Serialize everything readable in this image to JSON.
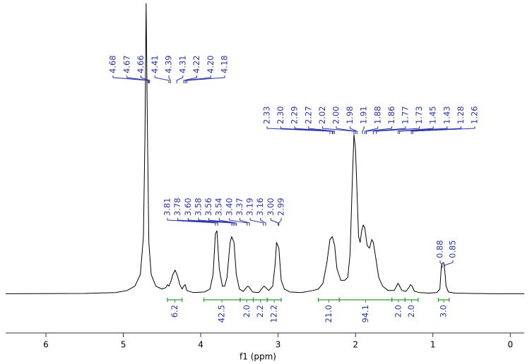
{
  "chart_data": {
    "type": "line",
    "x_label": "f1 (ppm)",
    "color": "#000000",
    "xlim": [
      6.52,
      -0.18
    ],
    "xticks": [
      6,
      5,
      4,
      3,
      2,
      1,
      0
    ],
    "ylim": [
      0,
      100
    ],
    "x": [
      6.52,
      5.5,
      5.1,
      4.95,
      4.85,
      4.78,
      4.74,
      4.72,
      4.705,
      4.69,
      4.67,
      4.64,
      4.58,
      4.5,
      4.45,
      4.43,
      4.41,
      4.38,
      4.36,
      4.33,
      4.3,
      4.27,
      4.24,
      4.22,
      4.2,
      4.18,
      4.1,
      3.95,
      3.88,
      3.84,
      3.81,
      3.79,
      3.76,
      3.72,
      3.69,
      3.66,
      3.62,
      3.6,
      3.57,
      3.54,
      3.5,
      3.45,
      3.41,
      3.39,
      3.37,
      3.33,
      3.25,
      3.2,
      3.18,
      3.16,
      3.12,
      3.07,
      3.04,
      3.02,
      2.99,
      2.96,
      2.92,
      2.85,
      2.7,
      2.55,
      2.48,
      2.42,
      2.37,
      2.33,
      2.3,
      2.27,
      2.24,
      2.19,
      2.14,
      2.1,
      2.07,
      2.04,
      2.02,
      2.0,
      1.98,
      1.96,
      1.94,
      1.92,
      1.9,
      1.88,
      1.85,
      1.82,
      1.79,
      1.77,
      1.74,
      1.7,
      1.65,
      1.58,
      1.5,
      1.47,
      1.45,
      1.43,
      1.4,
      1.35,
      1.31,
      1.29,
      1.27,
      1.24,
      1.18,
      1.05,
      0.95,
      0.91,
      0.89,
      0.875,
      0.86,
      0.845,
      0.83,
      0.8,
      0.72,
      0.5,
      0.2,
      -0.18
    ],
    "values": [
      0.4,
      0.5,
      0.8,
      1.5,
      3,
      7,
      20,
      55,
      100,
      60,
      18,
      7,
      3,
      2,
      2.5,
      3.5,
      3,
      5,
      7,
      8.5,
      6.5,
      3.5,
      2,
      3,
      3.5,
      1.5,
      0.8,
      1,
      2,
      7,
      21,
      22,
      9,
      3,
      3,
      6,
      18,
      20,
      18,
      7,
      2,
      1.2,
      2.5,
      3,
      2.5,
      1,
      0.8,
      2.5,
      3,
      2.5,
      1.5,
      3,
      10,
      18,
      16,
      5,
      2,
      1,
      0.8,
      1.5,
      2,
      4,
      11,
      19,
      20,
      17,
      9,
      5,
      5,
      6,
      14,
      40,
      55,
      50,
      35,
      20,
      18,
      22,
      24,
      23,
      17,
      16,
      19,
      18,
      13,
      6,
      3,
      1.5,
      1.5,
      3,
      4,
      3,
      1.5,
      1.2,
      2.5,
      3.5,
      3,
      1.3,
      0.8,
      0.6,
      0.8,
      2,
      10,
      11,
      11,
      8,
      3,
      1,
      0.6,
      0.5,
      0.4,
      0.4
    ],
    "peak_color": "#2a33a8",
    "peak_groups": [
      {
        "values": [
          4.68,
          4.67,
          4.66,
          4.41,
          4.39,
          4.31,
          4.22,
          4.2,
          4.18
        ],
        "value_labels": [
          "4.68",
          "4.67",
          "4.66",
          "4.41",
          "4.39",
          "4.31",
          "4.22",
          "4.20",
          "4.18"
        ]
      },
      {
        "values": [
          3.81,
          3.78,
          3.6,
          3.58,
          3.56,
          3.54,
          3.4,
          3.37,
          3.19,
          3.16,
          3.0,
          2.99
        ],
        "value_labels": [
          "3.81",
          "3.78",
          "3.60",
          "3.58",
          "3.56",
          "3.54",
          "3.40",
          "3.37",
          "3.19",
          "3.16",
          "3.00",
          "2.99"
        ]
      },
      {
        "values": [
          2.33,
          2.3,
          2.29,
          2.27,
          2.02,
          2.0,
          1.98,
          1.91,
          1.88,
          1.86,
          1.77,
          1.73,
          1.45,
          1.43,
          1.28,
          1.26
        ],
        "value_labels": [
          "2.33",
          "2.30",
          "2.29",
          "2.27",
          "2.02",
          "2.00",
          "1.98",
          "1.91",
          "1.88",
          "1.86",
          "1.77",
          "1.73",
          "1.45",
          "1.43",
          "1.28",
          "1.26"
        ]
      },
      {
        "values": [
          0.88,
          0.85
        ],
        "value_labels": [
          "0.88",
          "0.85"
        ]
      }
    ],
    "integrals": {
      "color": "#2e9a2e",
      "ranges": [
        [
          4.43,
          4.24
        ],
        [
          3.96,
          3.49
        ],
        [
          3.49,
          3.32
        ],
        [
          3.32,
          3.14
        ],
        [
          3.14,
          2.96
        ],
        [
          2.48,
          2.21
        ],
        [
          2.21,
          1.53
        ],
        [
          1.53,
          1.36
        ],
        [
          1.36,
          1.19
        ],
        [
          0.93,
          0.79
        ]
      ],
      "values": [
        6.2,
        42.5,
        2.0,
        2.2,
        12.2,
        21.0,
        94.1,
        2.0,
        2.0,
        3.0
      ],
      "value_labels": [
        "6.2",
        "42.5",
        "2.0",
        "2.2",
        "12.2",
        "21.0",
        "94.1",
        "2.0",
        "2.0",
        "3.0"
      ]
    }
  }
}
